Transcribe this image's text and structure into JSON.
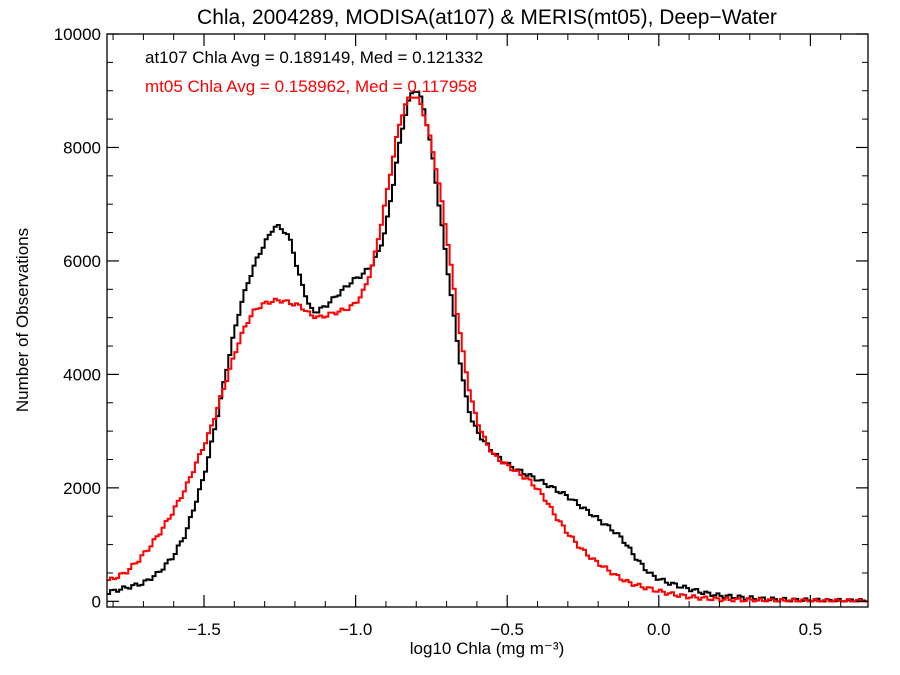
{
  "chart_data": {
    "type": "line",
    "title": "Chla, 2004289, MODISA(at107) & MERIS(mt05), Deep−Water",
    "xlabel": "log10 Chla (mg m⁻³)",
    "ylabel": "Number of Observations",
    "xlim": [
      -1.82,
      0.69
    ],
    "ylim": [
      -100,
      10000
    ],
    "x_ticks": [
      {
        "value": -1.5,
        "label": "−1.5"
      },
      {
        "value": -1.0,
        "label": "−1.0"
      },
      {
        "value": -0.5,
        "label": "−0.5"
      },
      {
        "value": 0.0,
        "label": "0.0"
      },
      {
        "value": 0.5,
        "label": "0.5"
      }
    ],
    "y_ticks": [
      {
        "value": 0,
        "label": "0"
      },
      {
        "value": 2000,
        "label": "2000"
      },
      {
        "value": 4000,
        "label": "4000"
      },
      {
        "value": 6000,
        "label": "6000"
      },
      {
        "value": 8000,
        "label": "8000"
      },
      {
        "value": 10000,
        "label": "10000"
      }
    ],
    "grid": false,
    "step": true,
    "annotations": [
      {
        "text": "at107 Chla Avg = 0.189149, Med = 0.121332",
        "color": "#000000"
      },
      {
        "text": "mt05 Chla Avg = 0.158962, Med = 0.117958",
        "color": "#ff0000"
      }
    ],
    "series": [
      {
        "name": "at107",
        "color": "#000000",
        "points": [
          [
            -1.82,
            150
          ],
          [
            -1.75,
            250
          ],
          [
            -1.7,
            320
          ],
          [
            -1.65,
            500
          ],
          [
            -1.6,
            800
          ],
          [
            -1.56,
            1200
          ],
          [
            -1.53,
            1700
          ],
          [
            -1.5,
            2200
          ],
          [
            -1.47,
            2900
          ],
          [
            -1.44,
            3700
          ],
          [
            -1.41,
            4500
          ],
          [
            -1.38,
            5200
          ],
          [
            -1.35,
            5700
          ],
          [
            -1.32,
            6100
          ],
          [
            -1.29,
            6400
          ],
          [
            -1.27,
            6600
          ],
          [
            -1.25,
            6600
          ],
          [
            -1.23,
            6500
          ],
          [
            -1.21,
            6300
          ],
          [
            -1.19,
            5800
          ],
          [
            -1.17,
            5500
          ],
          [
            -1.15,
            5150
          ],
          [
            -1.13,
            5100
          ],
          [
            -1.1,
            5200
          ],
          [
            -1.07,
            5350
          ],
          [
            -1.04,
            5500
          ],
          [
            -1.01,
            5650
          ],
          [
            -0.98,
            5750
          ],
          [
            -0.95,
            5900
          ],
          [
            -0.92,
            6200
          ],
          [
            -0.9,
            6600
          ],
          [
            -0.88,
            7200
          ],
          [
            -0.86,
            7900
          ],
          [
            -0.84,
            8500
          ],
          [
            -0.82,
            8900
          ],
          [
            -0.8,
            9050
          ],
          [
            -0.78,
            8800
          ],
          [
            -0.76,
            8300
          ],
          [
            -0.74,
            7600
          ],
          [
            -0.72,
            6800
          ],
          [
            -0.7,
            6000
          ],
          [
            -0.68,
            5200
          ],
          [
            -0.66,
            4400
          ],
          [
            -0.64,
            3700
          ],
          [
            -0.62,
            3250
          ],
          [
            -0.6,
            3000
          ],
          [
            -0.58,
            2850
          ],
          [
            -0.55,
            2650
          ],
          [
            -0.52,
            2500
          ],
          [
            -0.48,
            2350
          ],
          [
            -0.44,
            2250
          ],
          [
            -0.4,
            2150
          ],
          [
            -0.35,
            2000
          ],
          [
            -0.3,
            1850
          ],
          [
            -0.25,
            1650
          ],
          [
            -0.2,
            1450
          ],
          [
            -0.15,
            1250
          ],
          [
            -0.12,
            1100
          ],
          [
            -0.08,
            800
          ],
          [
            -0.05,
            600
          ],
          [
            -0.02,
            450
          ],
          [
            0.02,
            350
          ],
          [
            0.06,
            280
          ],
          [
            0.1,
            220
          ],
          [
            0.15,
            150
          ],
          [
            0.2,
            100
          ],
          [
            0.25,
            80
          ],
          [
            0.3,
            55
          ],
          [
            0.35,
            40
          ],
          [
            0.4,
            30
          ],
          [
            0.5,
            15
          ],
          [
            0.6,
            8
          ],
          [
            0.69,
            5
          ]
        ]
      },
      {
        "name": "mt05",
        "color": "#ff0000",
        "points": [
          [
            -1.82,
            350
          ],
          [
            -1.76,
            500
          ],
          [
            -1.72,
            700
          ],
          [
            -1.68,
            950
          ],
          [
            -1.64,
            1250
          ],
          [
            -1.6,
            1600
          ],
          [
            -1.56,
            2000
          ],
          [
            -1.52,
            2500
          ],
          [
            -1.48,
            3000
          ],
          [
            -1.45,
            3500
          ],
          [
            -1.42,
            4000
          ],
          [
            -1.39,
            4500
          ],
          [
            -1.36,
            4900
          ],
          [
            -1.33,
            5150
          ],
          [
            -1.3,
            5250
          ],
          [
            -1.27,
            5300
          ],
          [
            -1.24,
            5300
          ],
          [
            -1.21,
            5250
          ],
          [
            -1.18,
            5200
          ],
          [
            -1.15,
            5050
          ],
          [
            -1.12,
            5000
          ],
          [
            -1.09,
            5050
          ],
          [
            -1.06,
            5100
          ],
          [
            -1.03,
            5150
          ],
          [
            -1.0,
            5250
          ],
          [
            -0.97,
            5500
          ],
          [
            -0.94,
            6000
          ],
          [
            -0.91,
            6800
          ],
          [
            -0.88,
            7700
          ],
          [
            -0.86,
            8300
          ],
          [
            -0.84,
            8700
          ],
          [
            -0.82,
            8900
          ],
          [
            -0.8,
            8900
          ],
          [
            -0.78,
            8700
          ],
          [
            -0.76,
            8300
          ],
          [
            -0.74,
            7800
          ],
          [
            -0.72,
            7200
          ],
          [
            -0.7,
            6500
          ],
          [
            -0.68,
            5700
          ],
          [
            -0.66,
            4900
          ],
          [
            -0.64,
            4200
          ],
          [
            -0.62,
            3600
          ],
          [
            -0.6,
            3200
          ],
          [
            -0.57,
            2800
          ],
          [
            -0.54,
            2550
          ],
          [
            -0.5,
            2400
          ],
          [
            -0.46,
            2250
          ],
          [
            -0.42,
            2100
          ],
          [
            -0.38,
            1850
          ],
          [
            -0.34,
            1500
          ],
          [
            -0.3,
            1200
          ],
          [
            -0.26,
            950
          ],
          [
            -0.22,
            750
          ],
          [
            -0.18,
            600
          ],
          [
            -0.14,
            450
          ],
          [
            -0.1,
            330
          ],
          [
            -0.05,
            250
          ],
          [
            0.0,
            180
          ],
          [
            0.05,
            120
          ],
          [
            0.1,
            80
          ],
          [
            0.15,
            55
          ],
          [
            0.2,
            35
          ],
          [
            0.3,
            20
          ],
          [
            0.4,
            10
          ],
          [
            0.55,
            5
          ],
          [
            0.69,
            3
          ]
        ]
      }
    ]
  }
}
